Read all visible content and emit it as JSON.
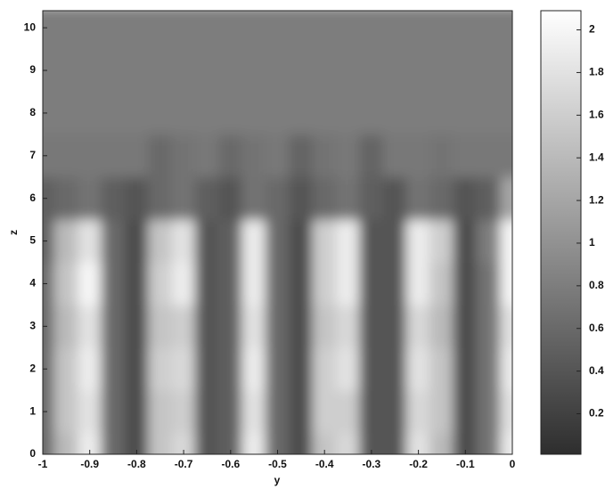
{
  "chart_data": {
    "type": "heatmap",
    "x_label": "y",
    "y_label": "z",
    "x": [
      -1,
      -0.95,
      -0.9,
      -0.85,
      -0.8,
      -0.75,
      -0.7,
      -0.65,
      -0.6,
      -0.55,
      -0.5,
      -0.45,
      -0.4,
      -0.35,
      -0.3,
      -0.25,
      -0.2,
      -0.15,
      -0.1,
      -0.05,
      0
    ],
    "y": [
      0,
      1,
      2,
      3,
      4,
      5,
      6,
      7,
      8,
      9,
      10
    ],
    "values": [
      [
        0.6,
        1.4,
        1.9,
        0.6,
        0.3,
        1.5,
        1.7,
        0.4,
        0.5,
        1.9,
        0.6,
        0.3,
        1.5,
        1.7,
        0.4,
        0.4,
        1.8,
        1.4,
        0.3,
        0.7,
        1.9
      ],
      [
        0.6,
        1.5,
        1.8,
        0.6,
        0.3,
        1.5,
        1.6,
        0.4,
        0.5,
        1.8,
        0.6,
        0.3,
        1.6,
        1.6,
        0.4,
        0.4,
        1.7,
        1.5,
        0.3,
        0.7,
        1.8
      ],
      [
        0.6,
        1.5,
        1.9,
        0.6,
        0.3,
        1.6,
        1.7,
        0.4,
        0.5,
        1.9,
        0.6,
        0.3,
        1.6,
        1.8,
        0.4,
        0.4,
        1.8,
        1.5,
        0.3,
        0.7,
        1.9
      ],
      [
        0.6,
        1.4,
        1.8,
        0.6,
        0.3,
        1.5,
        1.6,
        0.4,
        0.5,
        1.8,
        0.6,
        0.3,
        1.5,
        1.7,
        0.4,
        0.4,
        1.7,
        1.4,
        0.3,
        0.7,
        1.8
      ],
      [
        0.6,
        1.5,
        2.0,
        0.6,
        0.3,
        1.6,
        1.9,
        0.4,
        0.5,
        1.9,
        0.6,
        0.3,
        1.6,
        1.9,
        0.4,
        0.4,
        1.9,
        1.5,
        0.3,
        0.7,
        2.0
      ],
      [
        0.5,
        1.4,
        1.8,
        0.6,
        0.3,
        1.5,
        1.8,
        0.4,
        0.5,
        1.9,
        0.6,
        0.3,
        1.6,
        1.9,
        0.4,
        0.4,
        1.9,
        1.6,
        0.3,
        0.8,
        2.0
      ],
      [
        0.5,
        0.6,
        0.7,
        0.5,
        0.4,
        0.6,
        0.7,
        0.5,
        0.4,
        0.7,
        0.6,
        0.4,
        0.6,
        0.7,
        0.5,
        0.4,
        0.7,
        0.6,
        0.4,
        0.5,
        1.2
      ],
      [
        0.75,
        0.75,
        0.75,
        0.75,
        0.75,
        0.6,
        0.7,
        0.75,
        0.6,
        0.7,
        0.75,
        0.55,
        0.7,
        0.75,
        0.55,
        0.75,
        0.75,
        0.7,
        0.75,
        0.75,
        0.75
      ],
      [
        0.8,
        0.8,
        0.8,
        0.8,
        0.8,
        0.8,
        0.8,
        0.8,
        0.8,
        0.8,
        0.8,
        0.8,
        0.8,
        0.8,
        0.8,
        0.8,
        0.8,
        0.8,
        0.8,
        0.8,
        0.8
      ],
      [
        0.8,
        0.8,
        0.8,
        0.8,
        0.8,
        0.8,
        0.8,
        0.8,
        0.8,
        0.8,
        0.8,
        0.8,
        0.8,
        0.8,
        0.8,
        0.8,
        0.8,
        0.8,
        0.8,
        0.8,
        0.8
      ],
      [
        0.8,
        0.8,
        0.8,
        0.8,
        0.8,
        0.8,
        0.8,
        0.8,
        0.8,
        0.8,
        0.8,
        0.8,
        0.8,
        0.8,
        0.8,
        0.8,
        0.8,
        0.8,
        0.8,
        0.8,
        0.8
      ]
    ],
    "xlim": [
      -1,
      0
    ],
    "xticks": [
      -1,
      -0.9,
      -0.8,
      -0.7,
      -0.6,
      -0.5,
      -0.4,
      -0.3,
      -0.2,
      -0.1,
      0
    ],
    "ylim": [
      0,
      10.4
    ],
    "yticks": [
      0,
      1,
      2,
      3,
      4,
      5,
      6,
      7,
      8,
      9,
      10
    ],
    "colormap": [
      "#2e2e2e",
      "#ffffff"
    ],
    "colorbar": {
      "lim": [
        0.01,
        2.09
      ],
      "ticks": [
        0.2,
        0.4,
        0.6,
        0.8,
        1,
        1.2,
        1.4,
        1.6,
        1.8,
        2
      ]
    }
  }
}
